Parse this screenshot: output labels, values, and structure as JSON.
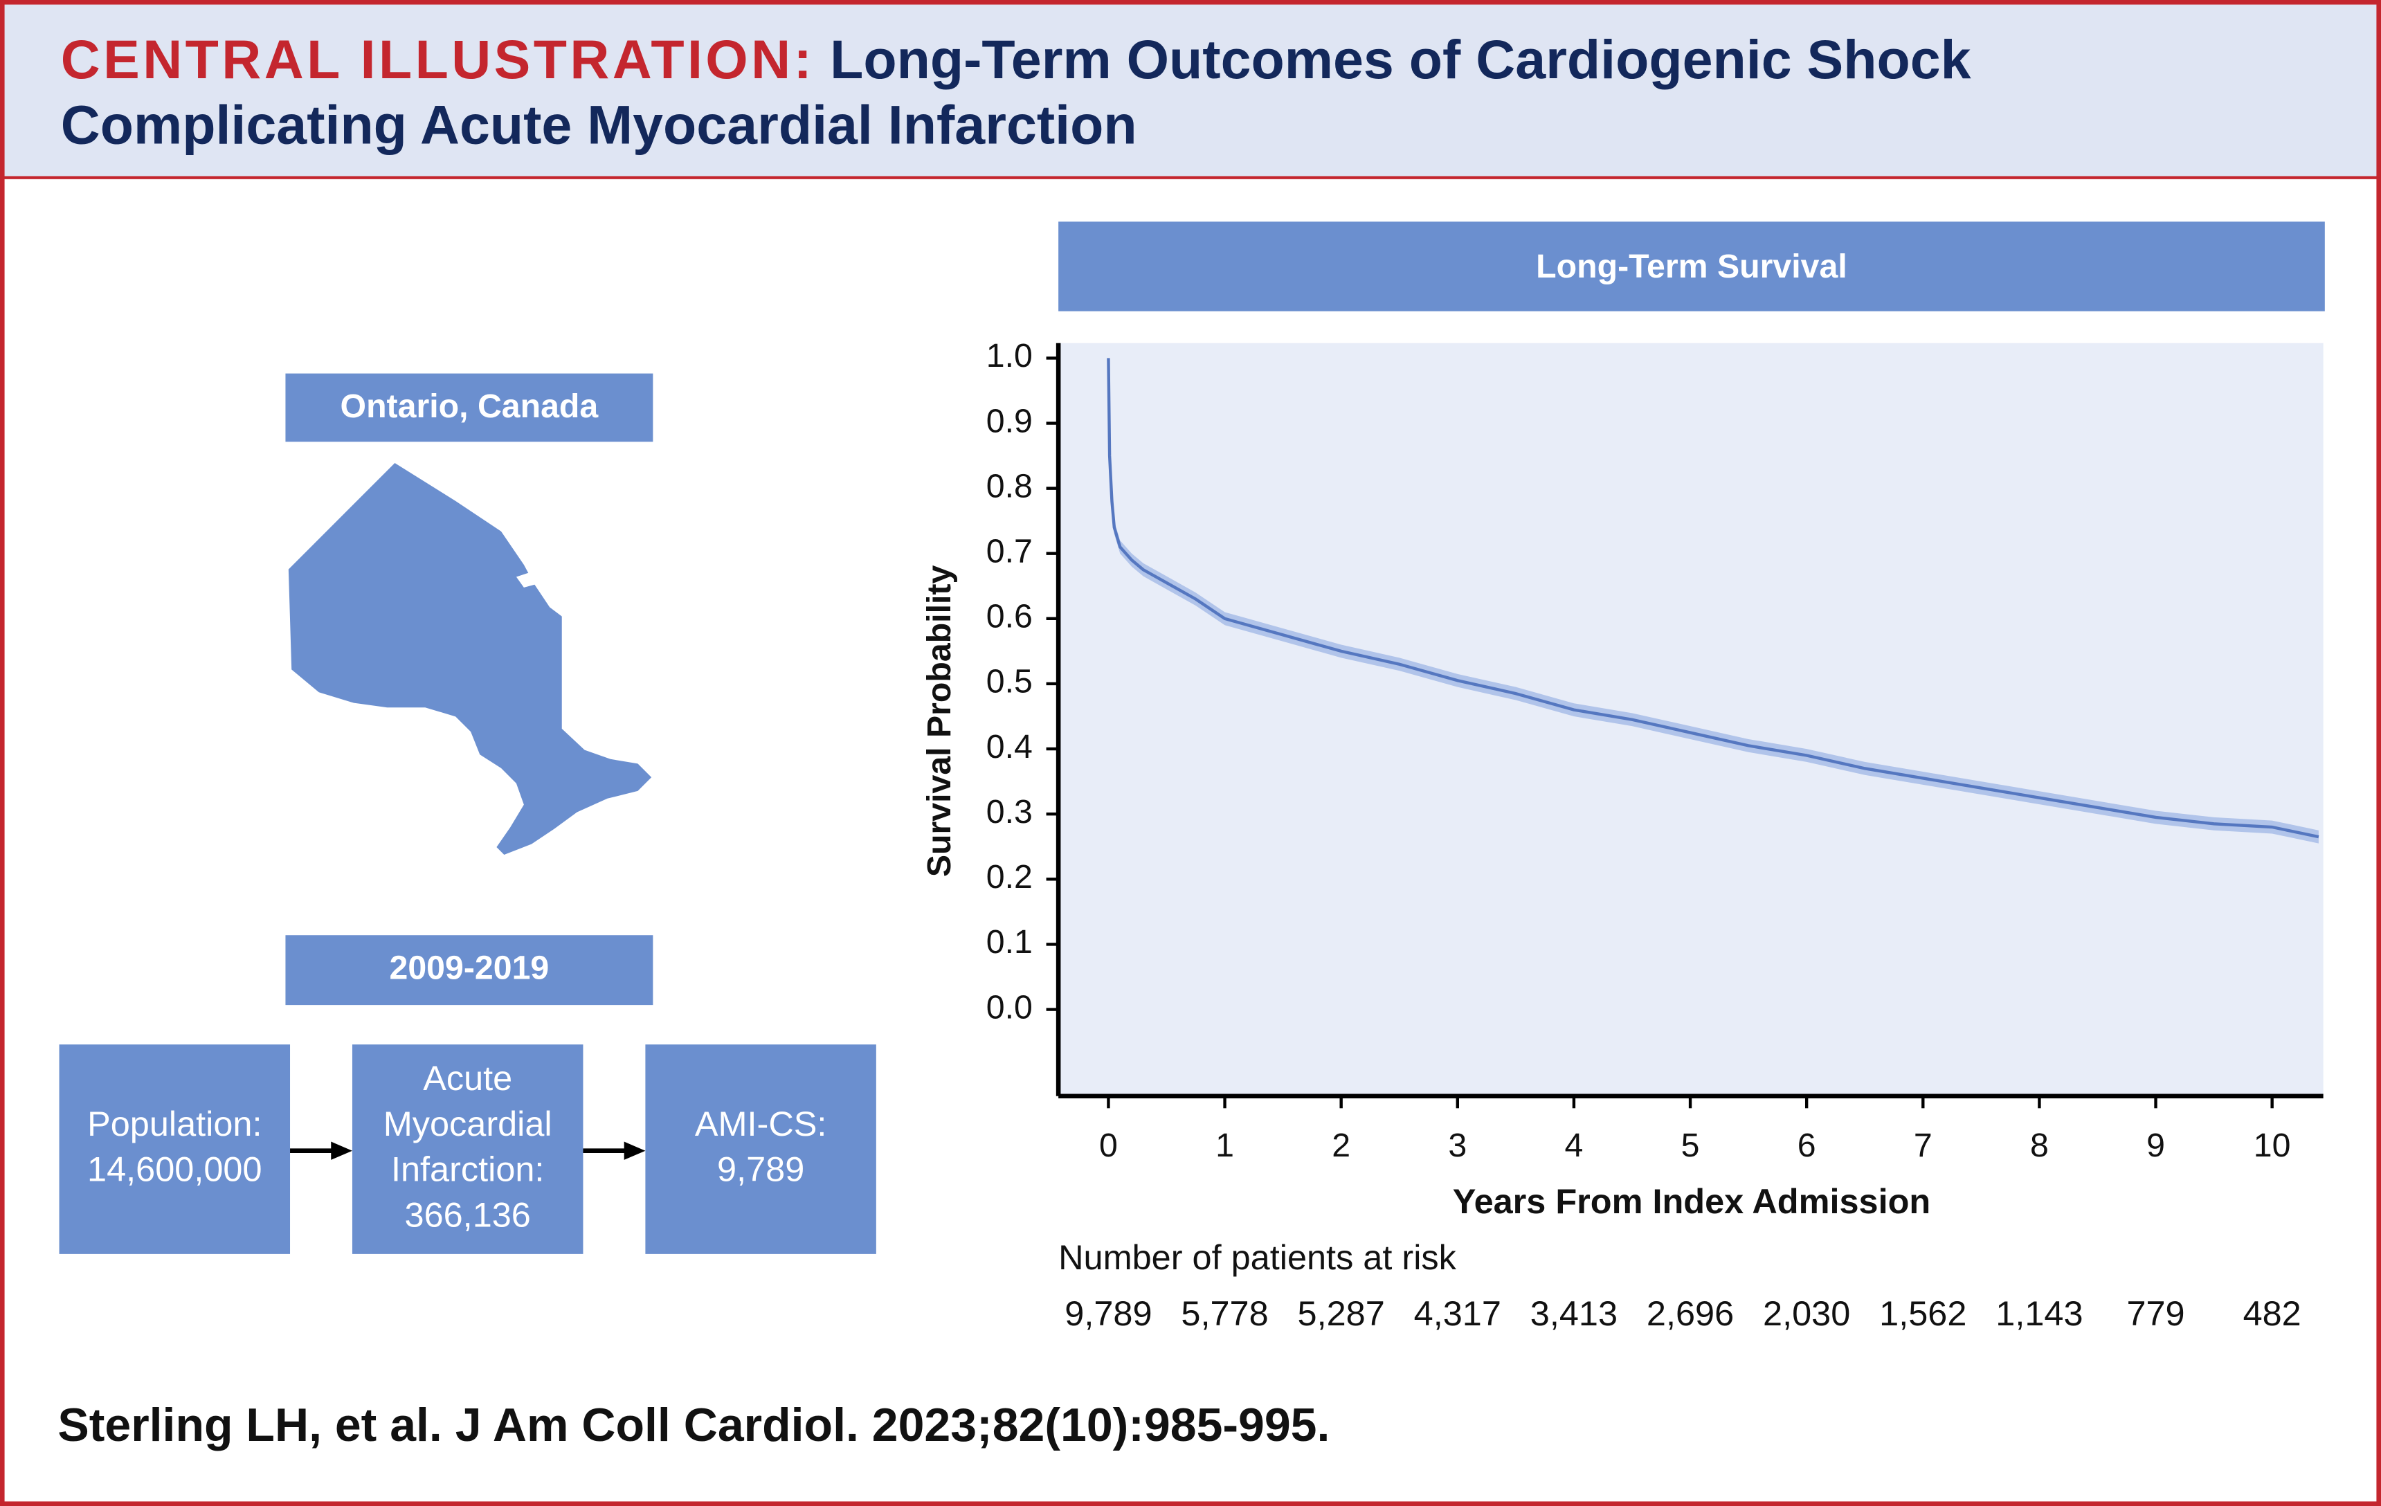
{
  "header": {
    "label": "CENTRAL ILLUSTRATION:",
    "title_lines": [
      "Long-Term Outcomes of Cardiogenic Shock",
      "Complicating Acute Myocardial Infarction"
    ]
  },
  "left_panel": {
    "region": "Ontario, Canada",
    "period": "2009-2019",
    "boxes": [
      {
        "lines": [
          "Population:",
          "14,600,000"
        ]
      },
      {
        "lines": [
          "Acute",
          "Myocardial",
          "Infarction:",
          "366,136"
        ]
      },
      {
        "lines": [
          "AMI-CS:",
          "9,789"
        ]
      }
    ]
  },
  "chart_data": {
    "type": "line",
    "title": "Long-Term Survival",
    "x_label": "Years From Index Admission",
    "y_label": "Survival Probability",
    "color": "#5577c0",
    "band_color": "#a3b9e6",
    "x": [
      0,
      0.01,
      0.03,
      0.05,
      0.1,
      0.2,
      0.3,
      0.5,
      0.75,
      1,
      1.5,
      2,
      2.5,
      3,
      3.5,
      4,
      4.5,
      5,
      5.5,
      6,
      6.5,
      7,
      7.5,
      8,
      8.5,
      9,
      9.5,
      10,
      10.4
    ],
    "values": [
      1.0,
      0.85,
      0.78,
      0.74,
      0.71,
      0.69,
      0.675,
      0.655,
      0.63,
      0.6,
      0.575,
      0.55,
      0.53,
      0.505,
      0.485,
      0.46,
      0.445,
      0.425,
      0.405,
      0.39,
      0.37,
      0.355,
      0.34,
      0.325,
      0.31,
      0.295,
      0.285,
      0.28,
      0.265
    ],
    "ci_upper": [
      1.0,
      0.86,
      0.79,
      0.75,
      0.72,
      0.7,
      0.685,
      0.665,
      0.64,
      0.61,
      0.585,
      0.56,
      0.54,
      0.515,
      0.495,
      0.47,
      0.455,
      0.435,
      0.415,
      0.4,
      0.38,
      0.365,
      0.35,
      0.335,
      0.32,
      0.305,
      0.295,
      0.29,
      0.275
    ],
    "ci_lower": [
      1.0,
      0.84,
      0.77,
      0.73,
      0.7,
      0.68,
      0.665,
      0.645,
      0.62,
      0.59,
      0.565,
      0.54,
      0.52,
      0.495,
      0.475,
      0.45,
      0.435,
      0.415,
      0.395,
      0.38,
      0.36,
      0.345,
      0.33,
      0.315,
      0.3,
      0.285,
      0.275,
      0.27,
      0.255
    ],
    "xlim": [
      -0.43,
      10.44
    ],
    "ylim": [
      -0.133,
      1.023
    ],
    "xticks": [
      0,
      1,
      2,
      3,
      4,
      5,
      6,
      7,
      8,
      9,
      10
    ],
    "yticks": [
      {
        "value": 1,
        "label": "1.0"
      },
      0.9,
      0.8,
      0.7,
      0.6,
      0.5,
      0.4,
      0.3,
      0.2,
      0.1,
      {
        "value": 0,
        "label": "0.0"
      }
    ],
    "at_risk_title": "Number of patients at risk",
    "at_risk": [
      "9,789",
      "5,778",
      "5,287",
      "4,317",
      "3,413",
      "2,696",
      "2,030",
      "1,562",
      "1,143",
      "779",
      "482"
    ]
  },
  "citation": "Sterling LH, et al. J Am Coll Cardiol. 2023;82(10):985-995."
}
